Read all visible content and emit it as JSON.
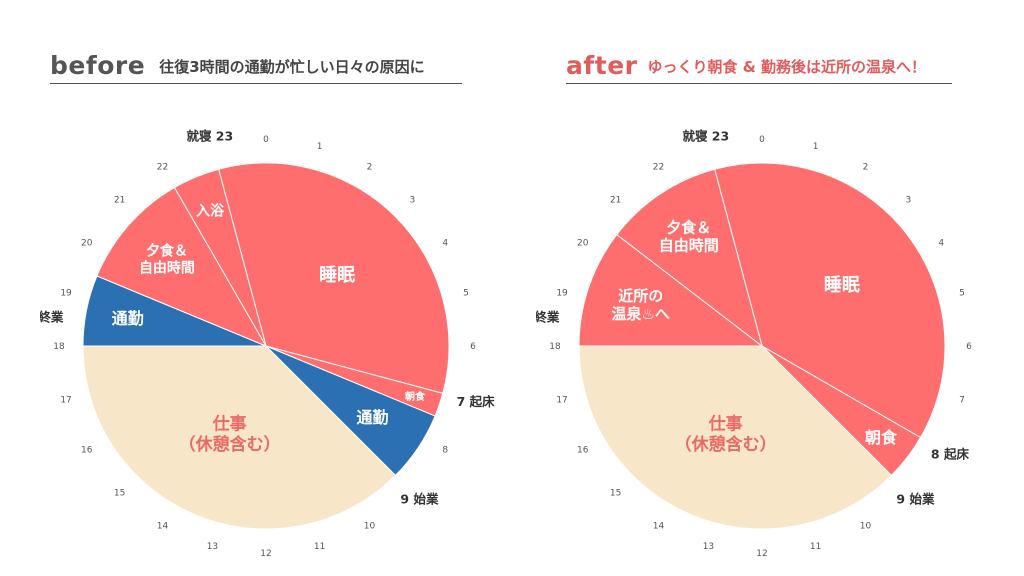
{
  "colors": {
    "sleep": "#ff6e6e",
    "work": "#f8e6c8",
    "commute": "#2b70b3",
    "work_label": "#e96a64",
    "divider": "#ffffff",
    "after_heading": "#e35b5b"
  },
  "chart_data": [
    {
      "type": "pie",
      "title": "before",
      "subtitle": "往復3時間の通勤が忙しい日々の原因に",
      "start_hour_at_top": 0,
      "hours_total": 24,
      "tick_labels": [
        "0",
        "1",
        "2",
        "3",
        "4",
        "5",
        "6",
        "7",
        "8",
        "9",
        "10",
        "11",
        "12",
        "13",
        "14",
        "15",
        "16",
        "17",
        "18",
        "19",
        "20",
        "21",
        "22",
        "23"
      ],
      "segments": [
        {
          "label": "睡眠",
          "start": 23,
          "end": 31,
          "hours": 8,
          "color_key": "sleep"
        },
        {
          "label": "朝食",
          "start": 7,
          "end": 7.5,
          "hours": 0.5,
          "color_key": "sleep"
        },
        {
          "label": "通勤",
          "start": 7.5,
          "end": 9,
          "hours": 1.5,
          "color_key": "commute"
        },
        {
          "label": "仕事\n（休憩含む）",
          "start": 9,
          "end": 18,
          "hours": 9,
          "color_key": "work"
        },
        {
          "label": "通勤",
          "start": 18,
          "end": 19.5,
          "hours": 1.5,
          "color_key": "commute"
        },
        {
          "label": "夕食＆\n自由時間",
          "start": 19.5,
          "end": 22,
          "hours": 2.5,
          "color_key": "sleep"
        },
        {
          "label": "入浴",
          "start": 22,
          "end": 23,
          "hours": 1,
          "color_key": "sleep"
        }
      ],
      "annotations": [
        {
          "hour": 23,
          "text": "就寝 23"
        },
        {
          "hour": 7,
          "text": "7 起床"
        },
        {
          "hour": 9,
          "text": "9 始業"
        },
        {
          "hour": 18.5,
          "text": "終業"
        }
      ]
    },
    {
      "type": "pie",
      "title": "after",
      "subtitle": "ゆっくり朝食 & 勤務後は近所の温泉へ！",
      "start_hour_at_top": 0,
      "hours_total": 24,
      "tick_labels": [
        "0",
        "1",
        "2",
        "3",
        "4",
        "5",
        "6",
        "7",
        "8",
        "9",
        "10",
        "11",
        "12",
        "13",
        "14",
        "15",
        "16",
        "17",
        "18",
        "19",
        "20",
        "21",
        "22",
        "23"
      ],
      "segments": [
        {
          "label": "睡眠",
          "start": 23,
          "end": 32,
          "hours": 9,
          "color_key": "sleep"
        },
        {
          "label": "朝食",
          "start": 8,
          "end": 9,
          "hours": 1,
          "color_key": "sleep"
        },
        {
          "label": "仕事\n（休憩含む）",
          "start": 9,
          "end": 18,
          "hours": 9,
          "color_key": "work"
        },
        {
          "label": "近所の\n温泉♨へ",
          "start": 18,
          "end": 20.5,
          "hours": 2.5,
          "color_key": "sleep"
        },
        {
          "label": "夕食＆\n自由時間",
          "start": 20.5,
          "end": 23,
          "hours": 2.5,
          "color_key": "sleep"
        }
      ],
      "annotations": [
        {
          "hour": 23,
          "text": "就寝 23"
        },
        {
          "hour": 8,
          "text": "8 起床"
        },
        {
          "hour": 9,
          "text": "9 始業"
        },
        {
          "hour": 18.5,
          "text": "終業"
        }
      ]
    }
  ]
}
